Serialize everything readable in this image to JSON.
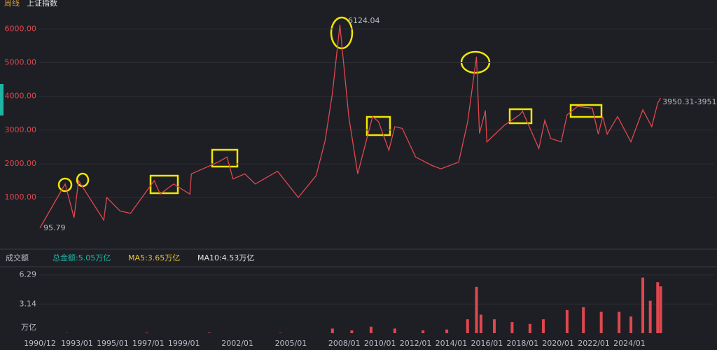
{
  "header": {
    "period": "周线",
    "name": "上证指数"
  },
  "chart_data": [
    {
      "type": "line",
      "x": [
        "1990/12",
        "1992/05",
        "1992/11",
        "1993/02",
        "1994/07",
        "1994/09",
        "1995/06",
        "1996/01",
        "1996/12",
        "1997/05",
        "1997/09",
        "1998/06",
        "1999/05",
        "1999/06",
        "2000/12",
        "2001/06",
        "2001/10",
        "2002/06",
        "2003/01",
        "2004/04",
        "2005/06",
        "2006/06",
        "2006/12",
        "2007/05",
        "2007/10",
        "2008/04",
        "2008/10",
        "2009/08",
        "2009/12",
        "2010/07",
        "2010/11",
        "2011/04",
        "2012/01",
        "2012/12",
        "2013/06",
        "2014/06",
        "2014/12",
        "2015/06",
        "2015/08",
        "2015/12",
        "2016/01",
        "2017/01",
        "2017/11",
        "2018/01",
        "2018/12",
        "2019/04",
        "2019/08",
        "2020/03",
        "2020/07",
        "2021/02",
        "2021/12",
        "2022/04",
        "2022/07",
        "2022/10",
        "2023/05",
        "2024/02",
        "2024/10",
        "2025/04",
        "2025/08",
        "2025/10"
      ],
      "values": [
        96,
        1400,
        400,
        1500,
        330,
        1000,
        600,
        530,
        1200,
        1500,
        1100,
        1400,
        1100,
        1700,
        2050,
        2200,
        1550,
        1700,
        1400,
        1780,
        1000,
        1650,
        2670,
        4100,
        6124,
        3400,
        1700,
        3400,
        3250,
        2400,
        3100,
        3050,
        2200,
        1950,
        1850,
        2050,
        3230,
        5178,
        2900,
        3580,
        2650,
        3150,
        3450,
        3560,
        2450,
        3290,
        2750,
        2650,
        3450,
        3700,
        3650,
        2880,
        3400,
        2880,
        3400,
        2650,
        3600,
        3100,
        3800,
        3950
      ],
      "color": "#e0474f",
      "ylim": [
        -450,
        6400
      ],
      "yticks": [
        {
          "value": 1000,
          "label": "1000.00"
        },
        {
          "value": 2000,
          "label": "2000.00"
        },
        {
          "value": 3000,
          "label": "3000.00"
        },
        {
          "value": 4000,
          "label": "4000.00"
        },
        {
          "value": 5000,
          "label": "5000.00"
        },
        {
          "value": 6000,
          "label": "6000.00"
        }
      ],
      "grid": true,
      "annotations": [
        "6124.04",
        "95.79",
        "3950.31-3951"
      ]
    },
    {
      "type": "bar",
      "title": "成交额",
      "legend": [
        "总金额:5.05万亿",
        "MA5:3.65万亿",
        "MA10:4.53万亿"
      ],
      "y_unit": "万亿",
      "x": [
        "1992/06",
        "1996/12",
        "2000/06",
        "2004/06",
        "2007/05",
        "2008/06",
        "2009/07",
        "2010/11",
        "2012/06",
        "2013/10",
        "2014/12",
        "2015/06",
        "2015/09",
        "2016/06",
        "2017/06",
        "2018/06",
        "2019/03",
        "2020/07",
        "2021/06",
        "2022/06",
        "2023/06",
        "2024/02",
        "2024/10",
        "2025/03",
        "2025/08",
        "2025/10"
      ],
      "values": [
        0.02,
        0.05,
        0.06,
        0.04,
        0.5,
        0.3,
        0.7,
        0.5,
        0.3,
        0.4,
        1.5,
        5.0,
        2.0,
        1.5,
        1.2,
        1.0,
        1.5,
        2.5,
        2.8,
        2.3,
        2.3,
        1.8,
        6.0,
        3.5,
        5.5,
        5.05
      ],
      "color": "#e0474f",
      "ylim": [
        0,
        7.1
      ],
      "yticks": [
        3.14,
        6.29
      ],
      "xticks": [
        "1990/12",
        "1993/01",
        "1995/01",
        "1997/01",
        "1999/01",
        "2002/01",
        "2005/01",
        "2008/01",
        "2010/01",
        "2012/01",
        "2014/01",
        "2016/01",
        "2018/01",
        "2020/01",
        "2022/01",
        "2024/01"
      ]
    }
  ]
}
